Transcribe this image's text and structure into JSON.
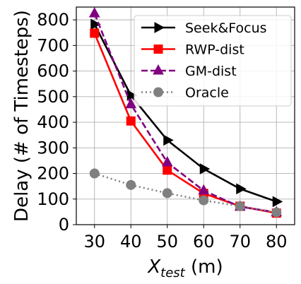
{
  "chart_data": {
    "type": "line",
    "x": [
      30,
      40,
      50,
      60,
      70,
      80
    ],
    "x_ticks": [
      "30",
      "40",
      "50",
      "60",
      "70",
      "80"
    ],
    "y_ticks": [
      "0",
      "100",
      "200",
      "300",
      "400",
      "500",
      "600",
      "700",
      "800"
    ],
    "xlabel": {
      "main": "X",
      "sub": "test",
      "unit": " (m)"
    },
    "ylabel": "Delay (# of Timesteps)",
    "xlim": [
      25,
      85
    ],
    "ylim": [
      0,
      850
    ],
    "grid": true,
    "legend_position": "top-right",
    "series": [
      {
        "name": "Seek&Focus",
        "values": [
          783,
          505,
          330,
          218,
          140,
          90
        ],
        "color": "#000000",
        "dash": "solid",
        "marker": "triangle-right"
      },
      {
        "name": "RWP-dist",
        "values": [
          748,
          405,
          213,
          122,
          72,
          45
        ],
        "color": "#ff0000",
        "dash": "solid",
        "marker": "square"
      },
      {
        "name": "GM-dist",
        "values": [
          825,
          470,
          243,
          133,
          70,
          48
        ],
        "color": "#800080",
        "dash": "dashed",
        "marker": "triangle-up"
      },
      {
        "name": "Oracle",
        "values": [
          200,
          155,
          123,
          95,
          72,
          48
        ],
        "color": "#808080",
        "dash": "dotted",
        "marker": "circle"
      }
    ]
  }
}
